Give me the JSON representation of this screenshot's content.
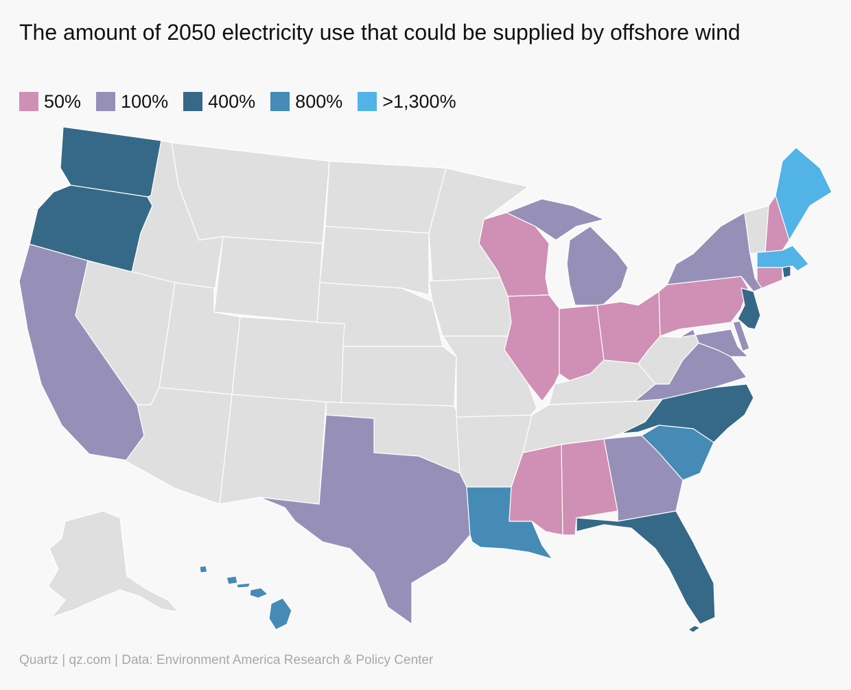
{
  "title": "The amount of 2050 electricity use that could be supplied by offshore wind",
  "legend": [
    {
      "label": "50%",
      "color": "#d08fb4"
    },
    {
      "label": "100%",
      "color": "#9690b8"
    },
    {
      "label": "400%",
      "color": "#366987"
    },
    {
      "label": "800%",
      "color": "#458bb6"
    },
    {
      "label": ">1,300%",
      "color": "#52b3e6"
    }
  ],
  "no_data_color": "#dfdfdf",
  "source": "Quartz | qz.com | Data: Environment America Research & Policy Center",
  "states": {
    "washington": "400%",
    "oregon": "400%",
    "california": "100%",
    "texas": "100%",
    "louisiana": "800%",
    "mississippi": "50%",
    "alabama": "50%",
    "georgia": "100%",
    "florida": "400%",
    "south_carolina": "800%",
    "north_carolina": "400%",
    "virginia": "100%",
    "maryland": "100%",
    "delaware": "100%",
    "new_jersey": "400%",
    "pennsylvania": "50%",
    "new_york": "100%",
    "connecticut": "50%",
    "rhode_island": "400%",
    "massachusetts": ">1,300%",
    "new_hampshire": "50%",
    "maine": ">1,300%",
    "vermont": "none",
    "ohio": "50%",
    "indiana": "50%",
    "illinois": "50%",
    "wisconsin": "50%",
    "michigan": "100%",
    "hawaii": "800%",
    "alaska": "none",
    "idaho": "none",
    "montana": "none",
    "wyoming": "none",
    "nevada": "none",
    "utah": "none",
    "colorado": "none",
    "arizona": "none",
    "new_mexico": "none",
    "north_dakota": "none",
    "south_dakota": "none",
    "nebraska": "none",
    "kansas": "none",
    "oklahoma": "none",
    "minnesota": "none",
    "iowa": "none",
    "missouri": "none",
    "arkansas": "none",
    "kentucky": "none",
    "tennessee": "none",
    "west_virginia": "none"
  }
}
